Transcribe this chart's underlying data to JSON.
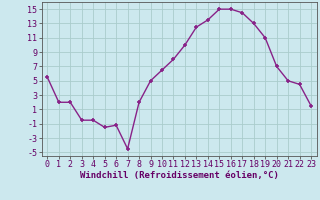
{
  "x": [
    0,
    1,
    2,
    3,
    4,
    5,
    6,
    7,
    8,
    9,
    10,
    11,
    12,
    13,
    14,
    15,
    16,
    17,
    18,
    19,
    20,
    21,
    22,
    23
  ],
  "y": [
    5.5,
    2,
    2,
    -0.5,
    -0.5,
    -1.5,
    -1.2,
    -4.5,
    2,
    5,
    6.5,
    8,
    10,
    12.5,
    13.5,
    15,
    15,
    14.5,
    13,
    11,
    7,
    5,
    4.5,
    1.5
  ],
  "line_color": "#882288",
  "marker": "+",
  "bg_color": "#cce8ee",
  "grid_color": "#aacccc",
  "xlim": [
    -0.5,
    23.5
  ],
  "ylim": [
    -5.5,
    16
  ],
  "yticks": [
    -5,
    -3,
    -1,
    1,
    3,
    5,
    7,
    9,
    11,
    13,
    15
  ],
  "xticks": [
    0,
    1,
    2,
    3,
    4,
    5,
    6,
    7,
    8,
    9,
    10,
    11,
    12,
    13,
    14,
    15,
    16,
    17,
    18,
    19,
    20,
    21,
    22,
    23
  ],
  "xlabel": "Windchill (Refroidissement éolien,°C)",
  "xlabel_fontsize": 6.5,
  "tick_fontsize": 6,
  "marker_size": 3,
  "line_width": 1.0
}
